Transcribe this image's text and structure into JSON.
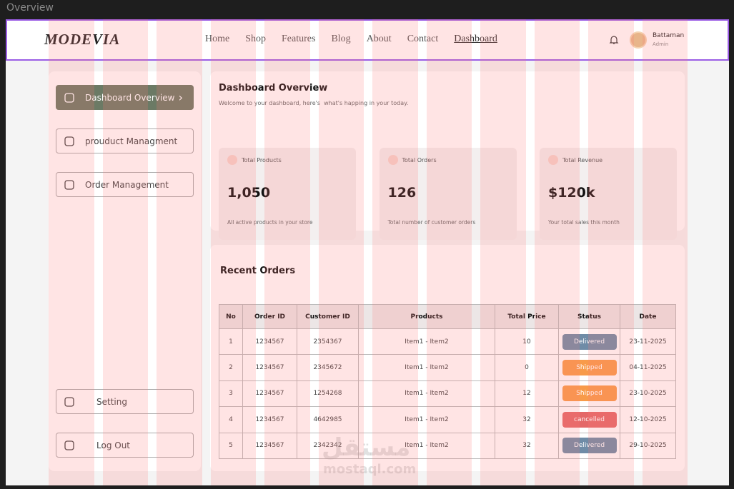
{
  "frame_label": "Overview",
  "nav": {
    "logo": "MODEVIA",
    "links": [
      "Home",
      "Shop",
      "Features",
      "Blog",
      "About",
      "Contact",
      "Dashboard"
    ],
    "user": {
      "name": "Battaman",
      "role": "Admin"
    }
  },
  "sidebar": {
    "menu": [
      "Dashboard Overview",
      "prouduct Managment",
      "Order Management"
    ],
    "footer": [
      "Setting",
      "Log Out"
    ]
  },
  "overview": {
    "title": "Dashboard Overview",
    "subtitle": "Welcome to your dashboard, here's  what's happing in your today.",
    "cards": [
      {
        "label": "Total Products",
        "value": "1,050",
        "note": "All active products in your store"
      },
      {
        "label": "Total Orders",
        "value": "126",
        "note": "Total number of customer orders"
      },
      {
        "label": "Total Revenue",
        "value": "$120k",
        "note": "Your total sales this month"
      }
    ]
  },
  "orders": {
    "title": "Recent Orders",
    "columns": [
      "No",
      "Order ID",
      "Customer ID",
      "Products",
      "Total Price",
      "Status",
      "Date"
    ],
    "rows": [
      [
        "1",
        "1234567",
        "2354367",
        "Item1 - Item2",
        "10",
        "Delivered",
        "23-11-2025"
      ],
      [
        "2",
        "1234567",
        "2345672",
        "Item1 - Item2",
        "0",
        "Shipped",
        "04-11-2025"
      ],
      [
        "3",
        "1234567",
        "1254268",
        "Item1 - Item2",
        "12",
        "Shipped",
        "23-10-2025"
      ],
      [
        "4",
        "1234567",
        "4642985",
        "Item1 - Item2",
        "32",
        "cancelled",
        "12-10-2025"
      ],
      [
        "5",
        "1234567",
        "2342342",
        "Item1 - Item2",
        "32",
        "Delivered",
        "29-10-2025"
      ]
    ],
    "status_colors": [
      "#6f8ca7",
      "#f89b4a",
      "#f89b4a",
      "#e46868",
      "#6f8ca7"
    ]
  },
  "watermark": {
    "arabic": "مستقل",
    "latin": "mostaql.com"
  }
}
